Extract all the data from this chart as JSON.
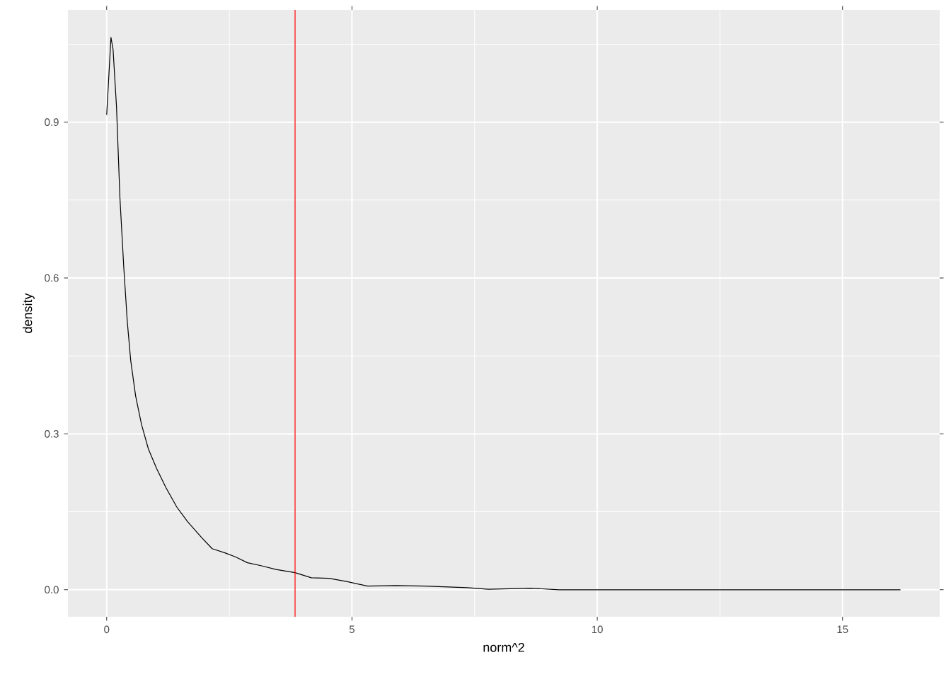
{
  "chart_data": {
    "type": "line",
    "xlabel": "norm^2",
    "ylabel": "density",
    "x": [
      0,
      0.087,
      0.13,
      0.2,
      0.27,
      0.35,
      0.42,
      0.49,
      0.59,
      0.71,
      0.85,
      1.02,
      1.21,
      1.43,
      1.65,
      1.93,
      2.15,
      2.41,
      2.63,
      2.87,
      3.16,
      3.45,
      3.84,
      4.17,
      4.53,
      4.89,
      5.32,
      5.9,
      6.48,
      7.35,
      7.78,
      8.64,
      9.22,
      16.18
    ],
    "series": [
      {
        "color": "#000000",
        "values": [
          0.914,
          1.063,
          1.04,
          0.93,
          0.754,
          0.618,
          0.516,
          0.441,
          0.373,
          0.318,
          0.271,
          0.233,
          0.196,
          0.159,
          0.131,
          0.101,
          0.079,
          0.071,
          0.063,
          0.052,
          0.046,
          0.039,
          0.033,
          0.023,
          0.022,
          0.016,
          0.007,
          0.008,
          0.007,
          0.004,
          0.001,
          0.003,
          0,
          0
        ]
      }
    ],
    "xlim": [
      -0.79,
      16.98
    ],
    "ylim": [
      -0.052,
      1.116
    ],
    "xticks": [
      0,
      5,
      10,
      15
    ],
    "yticks": [
      {
        "value": 0,
        "label": "0.0"
      },
      {
        "value": 0.3,
        "label": "0.3"
      },
      {
        "value": 0.6,
        "label": "0.6"
      },
      {
        "value": 0.9,
        "label": "0.9"
      }
    ],
    "grid": true,
    "ref_lines": [
      {
        "axis": "x",
        "value": 3.84,
        "color": "#ff0000"
      }
    ]
  }
}
